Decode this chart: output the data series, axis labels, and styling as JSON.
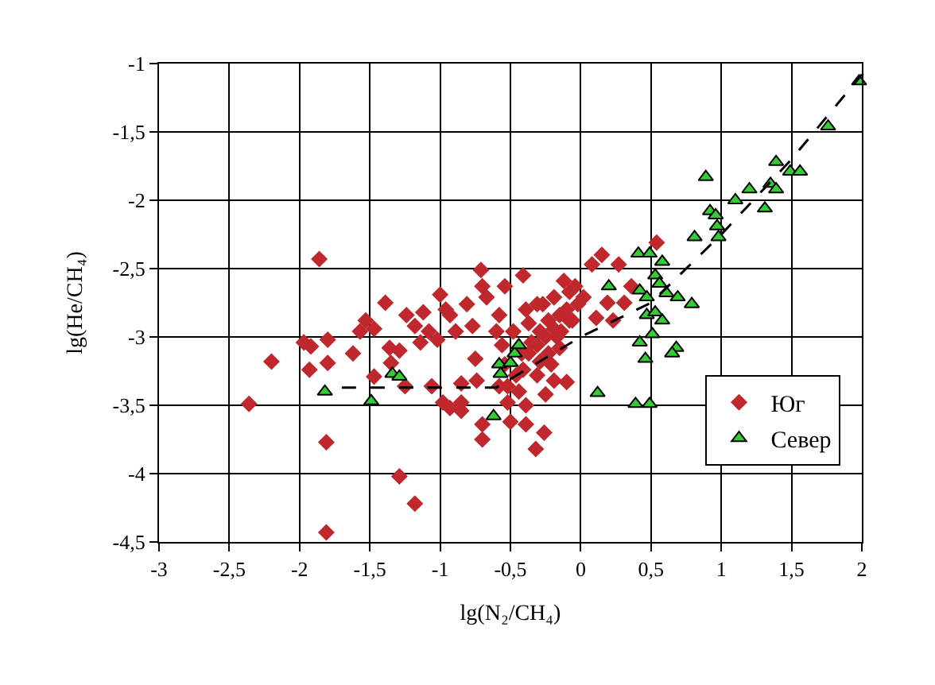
{
  "chart_data": {
    "type": "scatter",
    "xlabel": "lg(N₂/CH₄)",
    "ylabel": "lg(He/CH₄)",
    "xlim": [
      -3,
      2
    ],
    "ylim": [
      -4.5,
      -1
    ],
    "xticks": [
      -3,
      {
        "value": -2.5,
        "label": "-2,5"
      },
      -2,
      {
        "value": -1.5,
        "label": "-1,5"
      },
      -1,
      {
        "value": -0.5,
        "label": "-0,5"
      },
      0,
      {
        "value": 0.5,
        "label": "0,5"
      },
      1,
      {
        "value": 1.5,
        "label": "1,5"
      },
      2
    ],
    "yticks": [
      {
        "value": -4.5,
        "label": "-4,5"
      },
      -4,
      {
        "value": -3.5,
        "label": "-3,5"
      },
      -3,
      {
        "value": -2.5,
        "label": "-2,5"
      },
      -2,
      {
        "value": -1.5,
        "label": "-1,5"
      },
      -1
    ],
    "grid": true,
    "legend": "bottom right",
    "series": [
      {
        "name": "Юг",
        "color": "#c0282d",
        "marker": "diamond",
        "x": [
          -1.86,
          -2.36,
          -2.2,
          -1.97,
          -1.92,
          -1.93,
          -1.8,
          -1.8,
          -1.81,
          -1.81,
          -1.29,
          -1.18,
          -1.62,
          -1.57,
          -1.53,
          -1.47,
          -1.39,
          -1.36,
          -1.35,
          -1.47,
          -1.25,
          -1.24,
          -1.18,
          -1.12,
          -1.06,
          -1.0,
          -1.02,
          -0.98,
          -0.93,
          -0.85,
          -0.85,
          -0.93,
          -0.89,
          -0.81,
          -0.77,
          -0.71,
          -0.7,
          -0.67,
          -0.58,
          -0.54,
          -0.41,
          -0.39,
          -0.75,
          -0.74,
          -0.85,
          -0.7,
          -0.7,
          -0.58,
          -0.52,
          -0.5,
          -0.39,
          -0.39,
          -0.32,
          -0.26,
          -0.25,
          -0.31,
          -0.41,
          -0.46,
          -0.37,
          -0.35,
          -0.29,
          -0.23,
          -0.27,
          -0.19,
          -0.12,
          -0.08,
          -0.02,
          -0.15,
          -0.17,
          -0.23,
          -0.14,
          -0.1,
          -0.19,
          -0.1,
          -0.29,
          -0.31,
          -0.37,
          -0.31,
          -0.15,
          -0.06,
          0.02,
          0.08,
          0.15,
          0.11,
          0.19,
          0.23,
          0.27,
          0.31,
          0.36,
          0.54,
          -0.56,
          -0.48,
          -0.6,
          -1.08,
          -1.29,
          -0.96,
          -1.14,
          -0.54,
          -0.44,
          -0.52,
          -0.42,
          -0.21,
          -0.25,
          -0.19,
          -0.08,
          -0.04
        ],
        "values": [
          -2.43,
          -3.49,
          -3.18,
          -3.04,
          -3.07,
          -3.24,
          -3.02,
          -3.19,
          -3.77,
          -4.43,
          -4.02,
          -4.22,
          -3.12,
          -2.96,
          -2.88,
          -2.94,
          -2.75,
          -3.08,
          -3.19,
          -3.29,
          -3.36,
          -2.84,
          -2.92,
          -2.82,
          -3.36,
          -2.69,
          -3.02,
          -3.48,
          -3.52,
          -3.54,
          -3.48,
          -2.84,
          -2.96,
          -2.76,
          -2.92,
          -2.51,
          -2.63,
          -2.71,
          -2.84,
          -2.63,
          -2.55,
          -2.8,
          -3.16,
          -3.32,
          -3.34,
          -3.64,
          -3.75,
          -3.36,
          -3.48,
          -3.62,
          -3.64,
          -3.5,
          -3.82,
          -3.7,
          -3.42,
          -3.28,
          -3.24,
          -3.28,
          -3.12,
          -3.04,
          -2.96,
          -2.88,
          -2.76,
          -2.71,
          -2.59,
          -2.67,
          -2.76,
          -2.84,
          -3.0,
          -3.12,
          -2.96,
          -2.8,
          -3.32,
          -3.33,
          -3.18,
          -2.76,
          -2.9,
          -3.06,
          -3.08,
          -2.88,
          -2.71,
          -2.47,
          -2.4,
          -2.86,
          -2.75,
          -2.88,
          -2.47,
          -2.75,
          -2.63,
          -2.31,
          -3.06,
          -2.96,
          -2.96,
          -2.96,
          -3.1,
          -2.8,
          -3.04,
          -3.2,
          -3.4,
          -3.36,
          -3.12,
          -3.2,
          -3.0,
          -2.94,
          -2.88,
          -2.63
        ]
      },
      {
        "name": "Север",
        "color": "#33cc33",
        "marker": "triangle",
        "x": [
          -1.82,
          -1.49,
          -1.34,
          -1.29,
          -0.62,
          -0.58,
          -0.57,
          -0.5,
          -0.47,
          -0.44,
          0.12,
          0.2,
          0.39,
          0.49,
          0.42,
          0.46,
          0.41,
          0.49,
          0.58,
          0.53,
          0.56,
          0.42,
          0.47,
          0.61,
          0.69,
          0.79,
          0.47,
          0.53,
          0.58,
          0.51,
          0.68,
          0.65,
          0.81,
          0.89,
          0.92,
          0.96,
          0.97,
          0.98,
          1.1,
          1.2,
          1.31,
          1.35,
          1.39,
          1.39,
          1.49,
          1.56,
          1.76,
          1.98
        ],
        "values": [
          -3.4,
          -3.47,
          -3.27,
          -3.29,
          -3.58,
          -3.2,
          -3.27,
          -3.19,
          -3.12,
          -3.06,
          -3.41,
          -2.63,
          -3.49,
          -3.49,
          -3.04,
          -3.16,
          -2.39,
          -2.39,
          -2.45,
          -2.55,
          -2.61,
          -2.66,
          -2.71,
          -2.68,
          -2.71,
          -2.76,
          -2.84,
          -2.82,
          -2.88,
          -2.98,
          -3.08,
          -3.12,
          -2.27,
          -1.83,
          -2.08,
          -2.11,
          -2.19,
          -2.27,
          -2.0,
          -1.92,
          -2.06,
          -1.88,
          -1.92,
          -1.72,
          -1.79,
          -1.79,
          -1.46,
          -1.13
        ]
      },
      {
        "type": "line",
        "color": "#000000",
        "marker": "none",
        "line_style": "dashed",
        "x": [
          -1.7,
          -0.6,
          0,
          0.5,
          1,
          1.5,
          2
        ],
        "values": [
          -3.37,
          -3.37,
          -3.0,
          -2.75,
          -2.25,
          -1.7,
          -1.08
        ]
      }
    ]
  }
}
